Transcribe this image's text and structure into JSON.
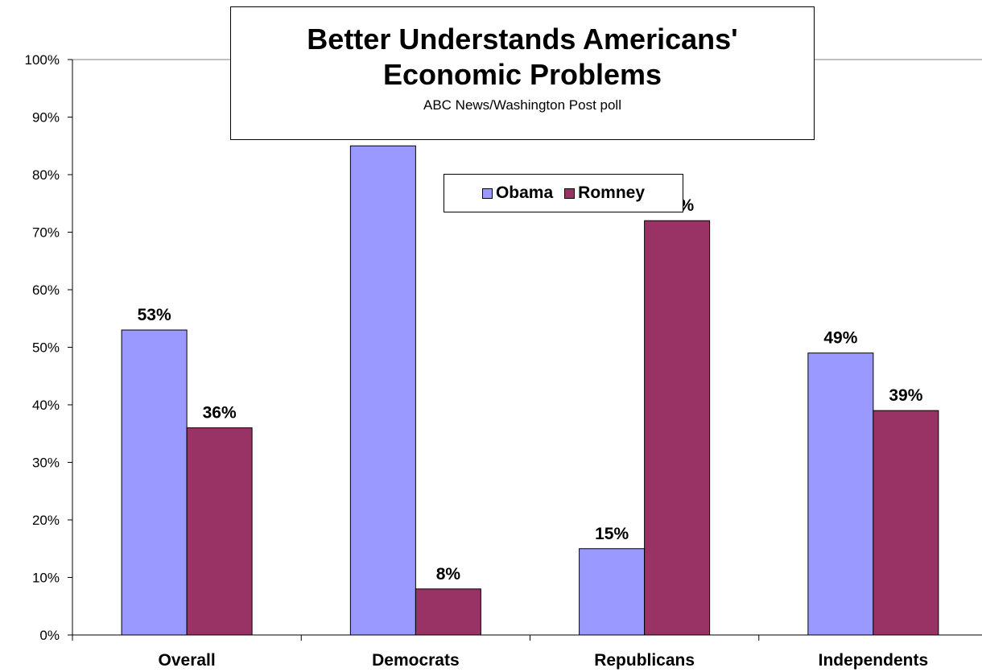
{
  "chart_data": {
    "type": "bar",
    "title": "Better Understands Americans' Economic Problems",
    "subtitle": "ABC News/Washington Post poll",
    "categories": [
      "Overall",
      "Democrats",
      "Republicans",
      "Independents"
    ],
    "series": [
      {
        "name": "Obama",
        "values": [
          53,
          85,
          15,
          49
        ],
        "labels": [
          "53%",
          "85%",
          "15%",
          "49%"
        ],
        "color": "#9999ff"
      },
      {
        "name": "Romney",
        "values": [
          36,
          8,
          72,
          39
        ],
        "labels": [
          "36%",
          "8%",
          "72%",
          "39%"
        ],
        "color": "#993366"
      }
    ],
    "ylim": [
      0,
      100
    ],
    "yticks": [
      0,
      10,
      20,
      30,
      40,
      50,
      60,
      70,
      80,
      90,
      100
    ],
    "ytick_labels": [
      "0%",
      "10%",
      "20%",
      "30%",
      "40%",
      "50%",
      "60%",
      "70%",
      "80%",
      "90%",
      "100%"
    ],
    "xlabel": "",
    "ylabel": "",
    "grid": false,
    "legend_position": "top-center"
  }
}
